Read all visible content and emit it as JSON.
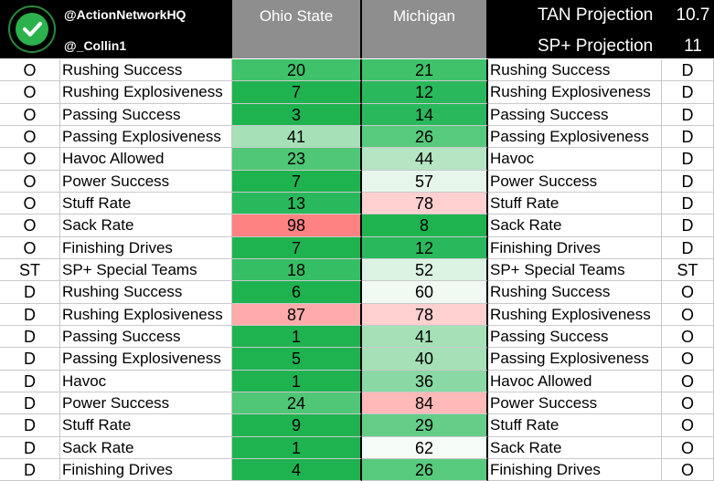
{
  "header": {
    "handle1": "@ActionNetworkHQ",
    "handle2": "@_Collin1",
    "team1": "Ohio State",
    "team2": "Michigan",
    "proj1_label": "TAN Projection",
    "proj1_value": "10.7",
    "proj2_label": "SP+ Projection",
    "proj2_value": "11",
    "logo_icon": "checkmark-icon"
  },
  "colors": {
    "dark_green": "#1fb350",
    "mid_green": "#3fc26a",
    "light_green": "#7ed39b",
    "pale_green": "#bfe8cc",
    "very_pale_green": "#e7f6eb",
    "pale_red": "#ffd0d0",
    "light_red": "#ffabab",
    "red": "#ff8282"
  },
  "rows": [
    {
      "side_l": "O",
      "metric_l": "Rushing Success",
      "osu": "20",
      "mich": "21",
      "metric_r": "Rushing Success",
      "side_r": "D",
      "osu_color": "#3fc26a",
      "mich_color": "#3fc26a"
    },
    {
      "side_l": "O",
      "metric_l": "Rushing Explosiveness",
      "osu": "7",
      "mich": "12",
      "metric_r": "Rushing Explosiveness",
      "side_r": "D",
      "osu_color": "#1fb350",
      "mich_color": "#2ab85c"
    },
    {
      "side_l": "O",
      "metric_l": "Passing Success",
      "osu": "3",
      "mich": "14",
      "metric_r": "Passing Success",
      "side_r": "D",
      "osu_color": "#1fb350",
      "mich_color": "#2ab85c"
    },
    {
      "side_l": "O",
      "metric_l": "Passing Explosiveness",
      "osu": "41",
      "mich": "26",
      "metric_r": "Passing Explosiveness",
      "side_r": "D",
      "osu_color": "#a5e0b7",
      "mich_color": "#58ca7e"
    },
    {
      "side_l": "O",
      "metric_l": "Havoc Allowed",
      "osu": "23",
      "mich": "44",
      "metric_r": "Havoc",
      "side_r": "D",
      "osu_color": "#4fc776",
      "mich_color": "#b5e5c3"
    },
    {
      "side_l": "O",
      "metric_l": "Power Success",
      "osu": "7",
      "mich": "57",
      "metric_r": "Power Success",
      "side_r": "D",
      "osu_color": "#1fb350",
      "mich_color": "#e7f6eb"
    },
    {
      "side_l": "O",
      "metric_l": "Stuff Rate",
      "osu": "13",
      "mich": "78",
      "metric_r": "Stuff Rate",
      "side_r": "D",
      "osu_color": "#2ab85c",
      "mich_color": "#ffd0d0"
    },
    {
      "side_l": "O",
      "metric_l": "Sack Rate",
      "osu": "98",
      "mich": "8",
      "metric_r": "Sack Rate",
      "side_r": "D",
      "osu_color": "#ff8282",
      "mich_color": "#1fb350"
    },
    {
      "side_l": "O",
      "metric_l": "Finishing Drives",
      "osu": "7",
      "mich": "12",
      "metric_r": "Finishing Drives",
      "side_r": "D",
      "osu_color": "#1fb350",
      "mich_color": "#2ab85c"
    },
    {
      "side_l": "ST",
      "metric_l": "SP+ Special Teams",
      "osu": "18",
      "mich": "52",
      "metric_r": "SP+ Special Teams",
      "side_r": "ST",
      "osu_color": "#36be65",
      "mich_color": "#dcf2e3"
    },
    {
      "side_l": "D",
      "metric_l": "Rushing Success",
      "osu": "6",
      "mich": "60",
      "metric_r": "Rushing Success",
      "side_r": "O",
      "osu_color": "#1fb350",
      "mich_color": "#f0f9f2"
    },
    {
      "side_l": "D",
      "metric_l": "Rushing Explosiveness",
      "osu": "87",
      "mich": "78",
      "metric_r": "Rushing Explosiveness",
      "side_r": "O",
      "osu_color": "#ffabab",
      "mich_color": "#ffd0d0"
    },
    {
      "side_l": "D",
      "metric_l": "Passing Success",
      "osu": "1",
      "mich": "41",
      "metric_r": "Passing Success",
      "side_r": "O",
      "osu_color": "#1fb350",
      "mich_color": "#a5e0b7"
    },
    {
      "side_l": "D",
      "metric_l": "Passing Explosiveness",
      "osu": "5",
      "mich": "40",
      "metric_r": "Passing Explosiveness",
      "side_r": "O",
      "osu_color": "#1fb350",
      "mich_color": "#a5e0b7"
    },
    {
      "side_l": "D",
      "metric_l": "Havoc",
      "osu": "1",
      "mich": "36",
      "metric_r": "Havoc Allowed",
      "side_r": "O",
      "osu_color": "#1fb350",
      "mich_color": "#8ad8a3"
    },
    {
      "side_l": "D",
      "metric_l": "Power Success",
      "osu": "24",
      "mich": "84",
      "metric_r": "Power Success",
      "side_r": "O",
      "osu_color": "#4fc776",
      "mich_color": "#ffb9b9"
    },
    {
      "side_l": "D",
      "metric_l": "Stuff Rate",
      "osu": "9",
      "mich": "29",
      "metric_r": "Stuff Rate",
      "side_r": "O",
      "osu_color": "#1fb350",
      "mich_color": "#65cd88"
    },
    {
      "side_l": "D",
      "metric_l": "Sack Rate",
      "osu": "1",
      "mich": "62",
      "metric_r": "Sack Rate",
      "side_r": "O",
      "osu_color": "#1fb350",
      "mich_color": "#f5fbf7"
    },
    {
      "side_l": "D",
      "metric_l": "Finishing Drives",
      "osu": "4",
      "mich": "26",
      "metric_r": "Finishing Drives",
      "side_r": "O",
      "osu_color": "#1fb350",
      "mich_color": "#58ca7e"
    }
  ]
}
